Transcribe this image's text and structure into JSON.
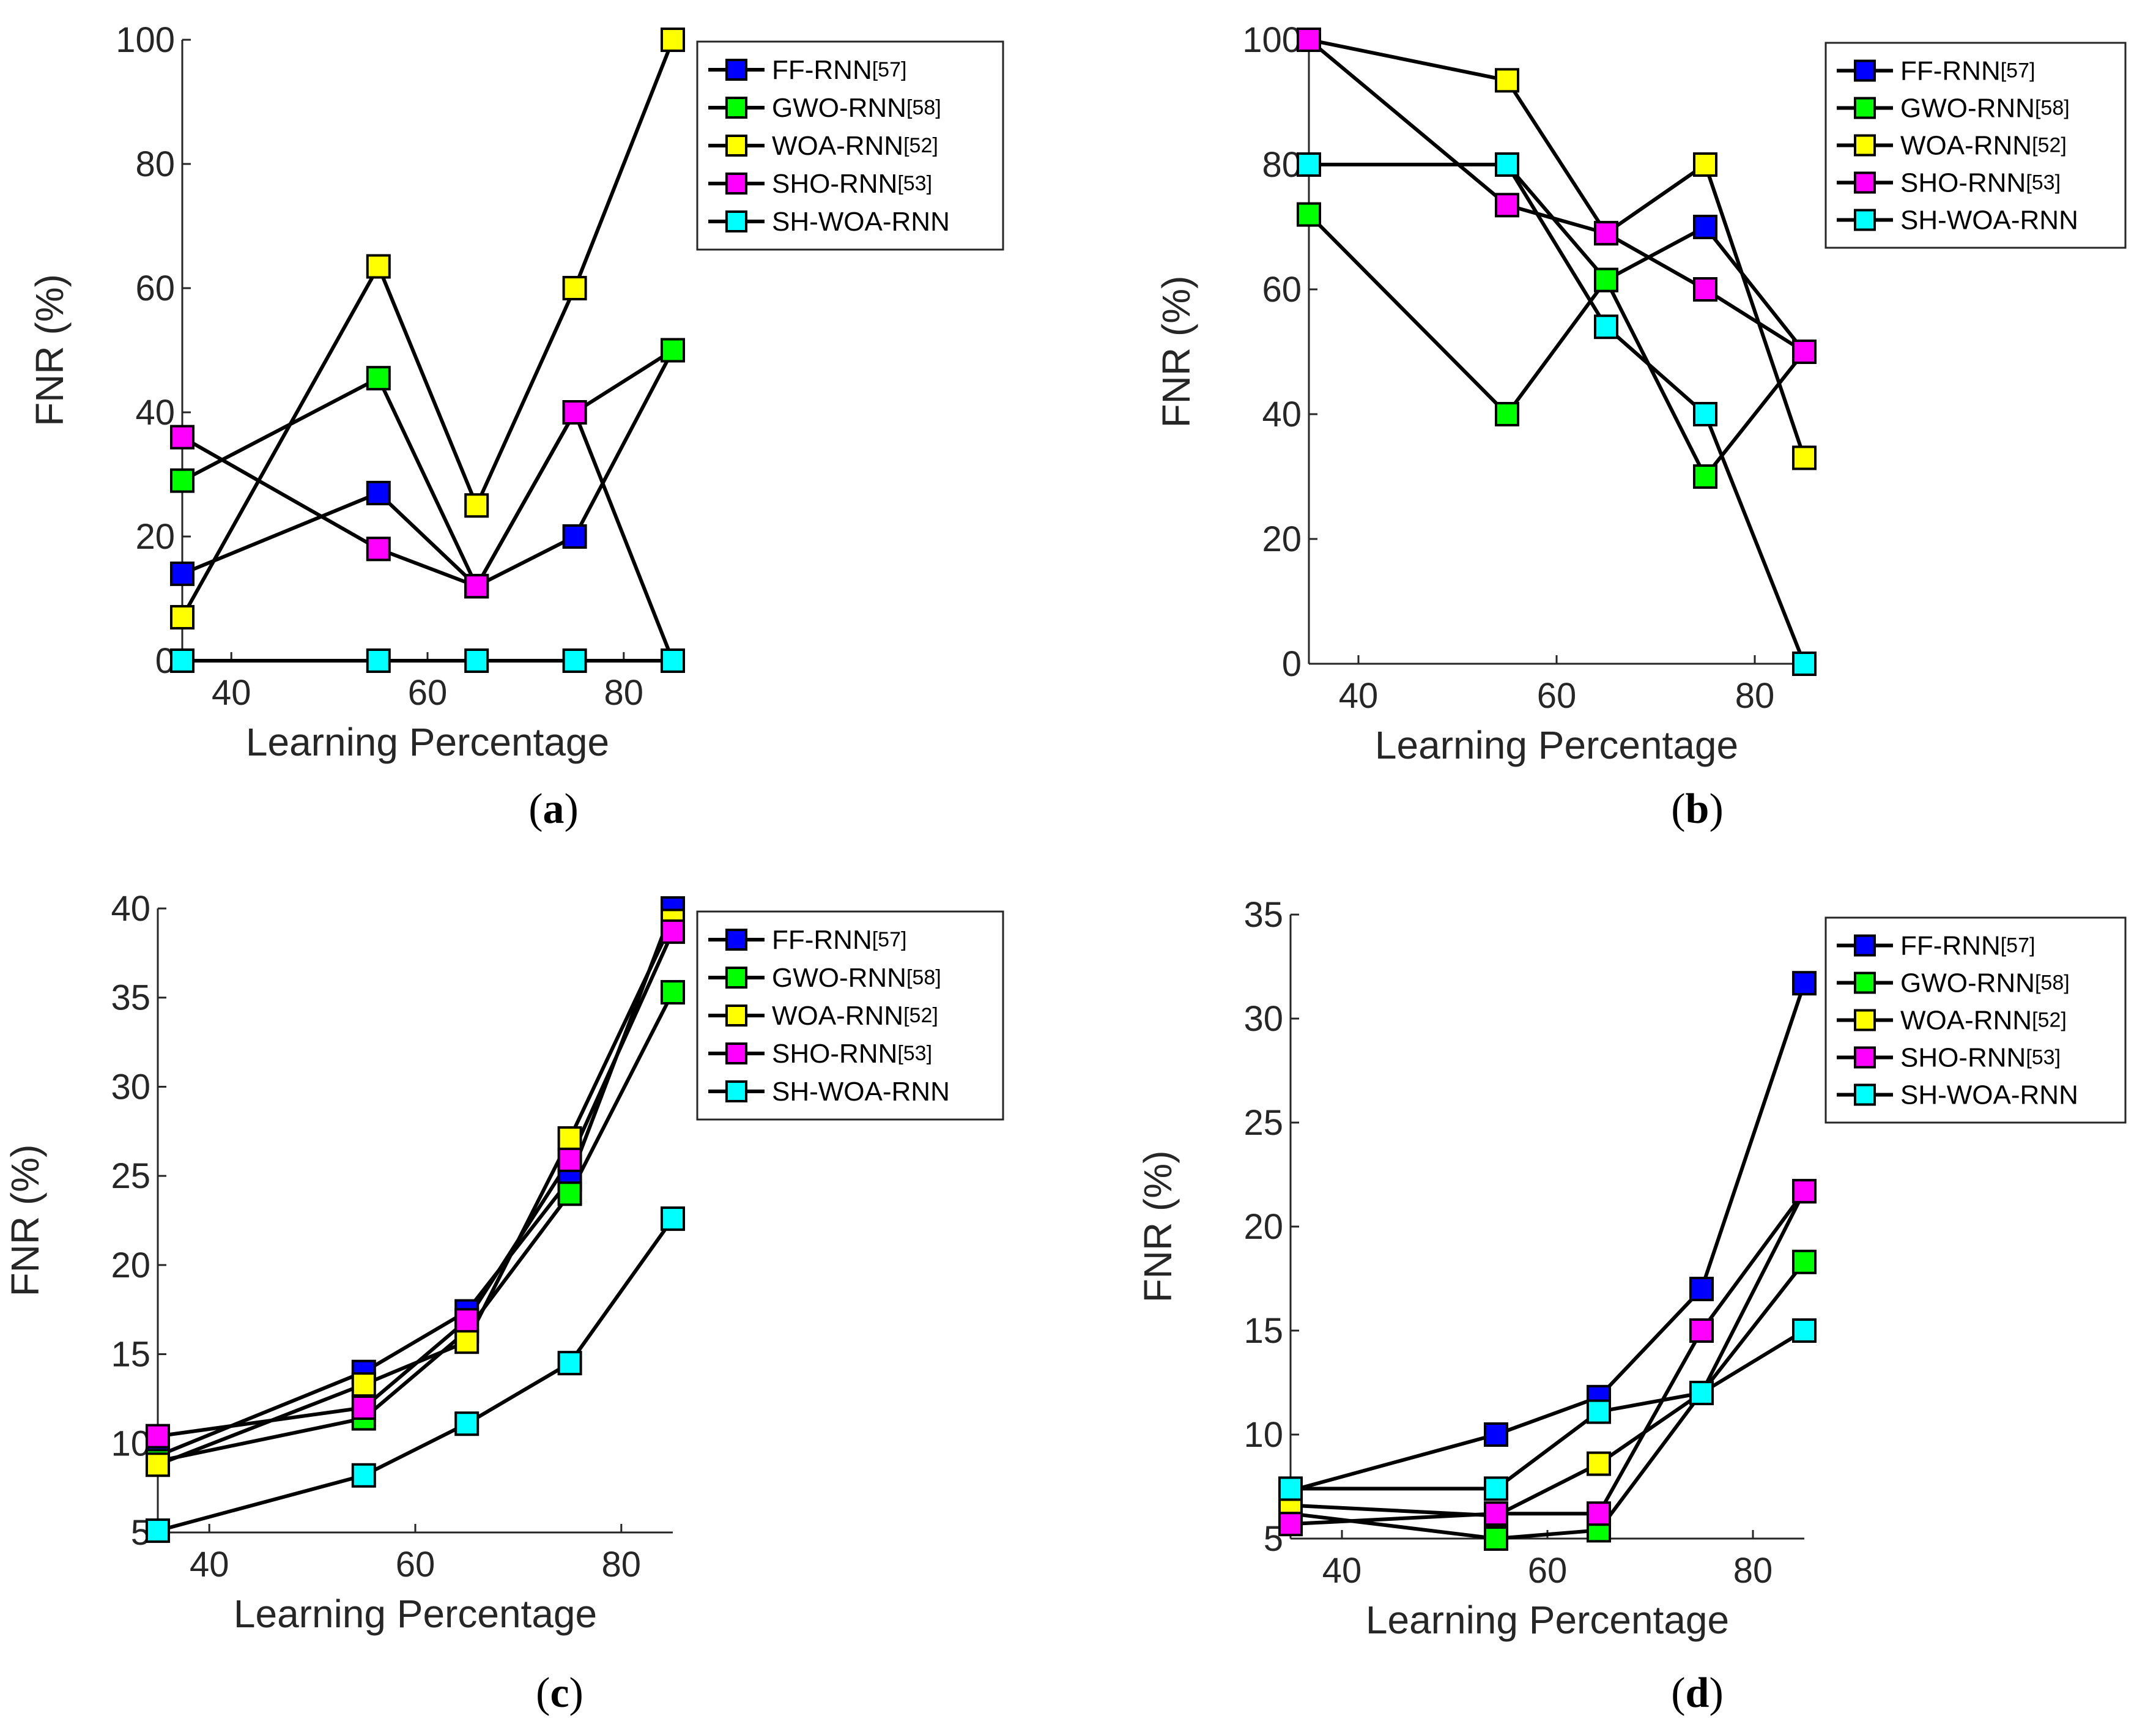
{
  "chart_data": [
    {
      "type": "line",
      "panel_label": "a",
      "xlabel": "Learning Percentage",
      "ylabel": "FNR (%)",
      "x": [
        35,
        55,
        65,
        75,
        85
      ],
      "xlim": [
        35,
        85
      ],
      "ylim": [
        0,
        100
      ],
      "xticks": [
        40,
        60,
        80
      ],
      "yticks": [
        0,
        20,
        40,
        60,
        80,
        100
      ],
      "grid": false,
      "legend_position": "top-right",
      "series": [
        {
          "name": "FF-RNN",
          "ref": "[57]",
          "color": "#0000ff",
          "values": [
            14,
            27,
            12,
            20,
            50
          ]
        },
        {
          "name": "GWO-RNN",
          "ref": "[58]",
          "color": "#00ff00",
          "values": [
            29,
            45.5,
            12,
            40,
            50
          ]
        },
        {
          "name": "WOA-RNN",
          "ref": "[52]",
          "color": "#ffff00",
          "values": [
            7,
            63.5,
            25,
            60,
            100
          ]
        },
        {
          "name": "SHO-RNN",
          "ref": "[53]",
          "color": "#ff00ff",
          "values": [
            36,
            18,
            12,
            40,
            0
          ]
        },
        {
          "name": "SH-WOA-RNN",
          "ref": "",
          "color": "#00ffff",
          "values": [
            0,
            0,
            0,
            0,
            0
          ]
        }
      ]
    },
    {
      "type": "line",
      "panel_label": "b",
      "xlabel": "Learning Percentage",
      "ylabel": "FNR (%)",
      "x": [
        35,
        55,
        65,
        75,
        85
      ],
      "xlim": [
        35,
        85
      ],
      "ylim": [
        0,
        100
      ],
      "xticks": [
        40,
        60,
        80
      ],
      "yticks": [
        0,
        20,
        40,
        60,
        80,
        100
      ],
      "grid": false,
      "legend_position": "top-right",
      "series": [
        {
          "name": "FF-RNN",
          "ref": "[57]",
          "color": "#0000ff",
          "values": [
            80,
            80,
            61.5,
            70,
            50
          ]
        },
        {
          "name": "GWO-RNN",
          "ref": "[58]",
          "color": "#00ff00",
          "values": [
            72,
            40,
            61.5,
            30,
            50
          ]
        },
        {
          "name": "WOA-RNN",
          "ref": "[52]",
          "color": "#ffff00",
          "values": [
            100,
            93.5,
            69,
            80,
            33
          ]
        },
        {
          "name": "SHO-RNN",
          "ref": "[53]",
          "color": "#ff00ff",
          "values": [
            100,
            73.5,
            69,
            60,
            50
          ]
        },
        {
          "name": "SH-WOA-RNN",
          "ref": "",
          "color": "#00ffff",
          "values": [
            80,
            80,
            54,
            40,
            0
          ]
        }
      ]
    },
    {
      "type": "line",
      "panel_label": "c",
      "xlabel": "Learning Percentage",
      "ylabel": "FNR (%)",
      "x": [
        35,
        55,
        65,
        75,
        85
      ],
      "xlim": [
        35,
        85
      ],
      "ylim": [
        5,
        40
      ],
      "xticks": [
        40,
        60,
        80
      ],
      "yticks": [
        5,
        10,
        15,
        20,
        25,
        30,
        35,
        40
      ],
      "grid": false,
      "legend_position": "top-right",
      "series": [
        {
          "name": "FF-RNN",
          "ref": "[57]",
          "color": "#0000ff",
          "values": [
            9.3,
            14,
            17.4,
            24.8,
            40
          ]
        },
        {
          "name": "GWO-RNN",
          "ref": "[58]",
          "color": "#00ff00",
          "values": [
            9,
            11.4,
            16.3,
            24,
            35.3
          ]
        },
        {
          "name": "WOA-RNN",
          "ref": "[52]",
          "color": "#ffff00",
          "values": [
            8.8,
            13.3,
            15.7,
            27.1,
            39.3
          ]
        },
        {
          "name": "SHO-RNN",
          "ref": "[53]",
          "color": "#ff00ff",
          "values": [
            10.4,
            12,
            16.9,
            25.9,
            38.7
          ]
        },
        {
          "name": "SH-WOA-RNN",
          "ref": "",
          "color": "#00ffff",
          "values": [
            5.1,
            8.2,
            11.1,
            14.5,
            22.6
          ]
        }
      ]
    },
    {
      "type": "line",
      "panel_label": "d",
      "xlabel": "Learning Percentage",
      "ylabel": "FNR (%)",
      "x": [
        35,
        55,
        65,
        75,
        85
      ],
      "xlim": [
        35,
        85
      ],
      "ylim": [
        5,
        35
      ],
      "xticks": [
        40,
        60,
        80
      ],
      "yticks": [
        5,
        10,
        15,
        20,
        25,
        30,
        35
      ],
      "grid": false,
      "legend_position": "top-right",
      "series": [
        {
          "name": "FF-RNN",
          "ref": "[57]",
          "color": "#0000ff",
          "values": [
            7.3,
            10,
            11.8,
            17,
            31.7
          ]
        },
        {
          "name": "GWO-RNN",
          "ref": "[58]",
          "color": "#00ff00",
          "values": [
            6.2,
            5,
            5.4,
            12,
            18.3
          ]
        },
        {
          "name": "WOA-RNN",
          "ref": "[52]",
          "color": "#ffff00",
          "values": [
            6.6,
            6.1,
            8.6,
            12,
            21.7
          ]
        },
        {
          "name": "SHO-RNN",
          "ref": "[53]",
          "color": "#ff00ff",
          "values": [
            5.7,
            6.2,
            6.2,
            15,
            21.7
          ]
        },
        {
          "name": "SH-WOA-RNN",
          "ref": "",
          "color": "#00ffff",
          "values": [
            7.4,
            7.4,
            11.1,
            12,
            15
          ]
        }
      ]
    }
  ]
}
